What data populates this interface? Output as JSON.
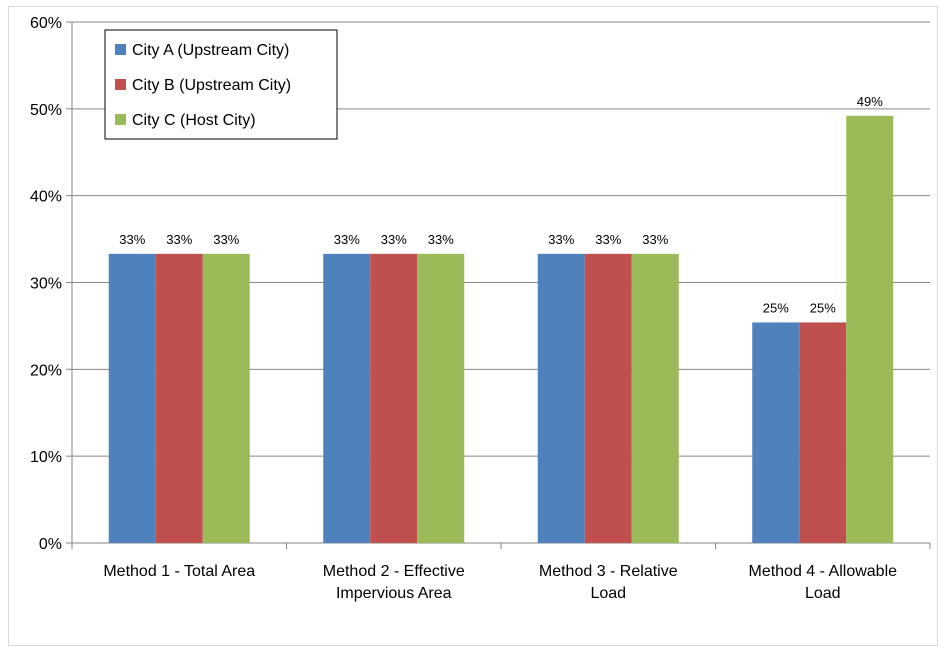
{
  "chart_data": {
    "type": "bar",
    "title": "",
    "xlabel": "",
    "ylabel": "",
    "ylim": [
      0,
      0.6
    ],
    "yticks": [
      {
        "value": 0,
        "label": "0%"
      },
      {
        "value": 0.1,
        "label": "10%"
      },
      {
        "value": 0.2,
        "label": "20%"
      },
      {
        "value": 0.3,
        "label": "30%"
      },
      {
        "value": 0.4,
        "label": "40%"
      },
      {
        "value": 0.5,
        "label": "50%"
      },
      {
        "value": 0.6,
        "label": "60%"
      }
    ],
    "categories": [
      [
        "Method 1 - Total Area"
      ],
      [
        "Method 2 - Effective",
        "Impervious Area"
      ],
      [
        "Method 3 - Relative",
        "Load"
      ],
      [
        "Method 4 - Allowable",
        "Load"
      ]
    ],
    "series": [
      {
        "name": "City A (Upstream City)",
        "color": "#4f81bd",
        "values": [
          0.333,
          0.333,
          0.333,
          0.254
        ],
        "labels": [
          "33%",
          "33%",
          "33%",
          "25%"
        ]
      },
      {
        "name": "City B (Upstream City)",
        "color": "#c0504d",
        "values": [
          0.333,
          0.333,
          0.333,
          0.254
        ],
        "labels": [
          "33%",
          "33%",
          "33%",
          "25%"
        ]
      },
      {
        "name": "City C (Host City)",
        "color": "#9bbb59",
        "values": [
          0.333,
          0.333,
          0.333,
          0.492
        ],
        "labels": [
          "33%",
          "33%",
          "33%",
          "49%"
        ]
      }
    ],
    "grid": true,
    "legend": "top-left",
    "gridline_color": "#868686"
  }
}
